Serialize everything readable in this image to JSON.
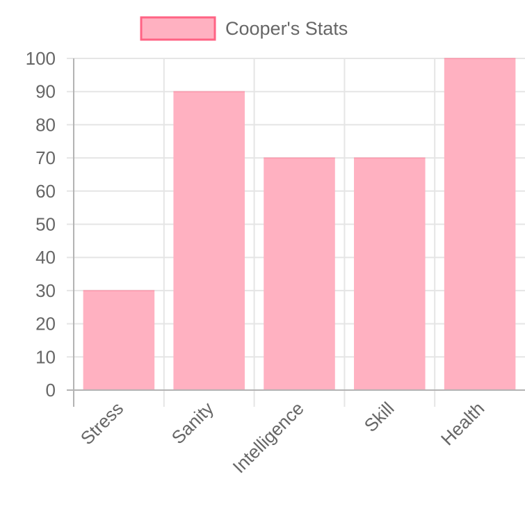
{
  "chart_data": {
    "type": "bar",
    "categories": [
      "Stress",
      "Sanity",
      "Intelligence",
      "Skill",
      "Health"
    ],
    "series": [
      {
        "name": "Cooper's Stats",
        "values": [
          30,
          90,
          70,
          70,
          100
        ]
      }
    ],
    "title": "",
    "xlabel": "",
    "ylabel": "",
    "ylim": [
      0,
      100
    ],
    "yticks": [
      "0",
      "10",
      "20",
      "30",
      "40",
      "50",
      "60",
      "70",
      "80",
      "90",
      "100"
    ],
    "grid": true,
    "legend_position": "top",
    "colors": {
      "bar_fill": "#ffb1c1",
      "bar_border": "#ff6384",
      "grid": "#e5e5e5",
      "axis": "#b3b3b3",
      "text": "#666666"
    }
  }
}
